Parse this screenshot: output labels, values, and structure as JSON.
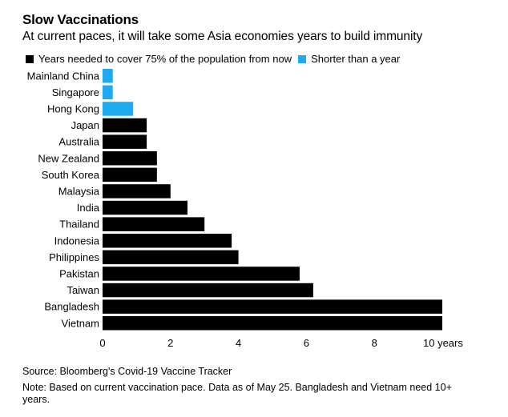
{
  "title": "Slow Vaccinations",
  "subtitle": "At current paces, it will take some Asia economies years to build immunity",
  "legend": [
    {
      "label": "Years needed to cover 75% of the population from now",
      "color": "#000000"
    },
    {
      "label": "Shorter than a year",
      "color": "#1eaaf1"
    }
  ],
  "chart_data": {
    "type": "bar",
    "orientation": "horizontal",
    "categories": [
      "Mainland China",
      "Singapore",
      "Hong Kong",
      "Japan",
      "Australia",
      "New Zealand",
      "South Korea",
      "Malaysia",
      "India",
      "Thailand",
      "Indonesia",
      "Philippines",
      "Pakistan",
      "Taiwan",
      "Bangladesh",
      "Vietnam"
    ],
    "values": [
      0.3,
      0.3,
      0.9,
      1.3,
      1.3,
      1.6,
      1.6,
      2.0,
      2.5,
      3.0,
      3.8,
      4.0,
      5.8,
      6.2,
      10,
      10
    ],
    "colors": [
      "#1eaaf1",
      "#1eaaf1",
      "#1eaaf1",
      "#000000",
      "#000000",
      "#000000",
      "#000000",
      "#000000",
      "#000000",
      "#000000",
      "#000000",
      "#000000",
      "#000000",
      "#000000",
      "#000000",
      "#000000"
    ],
    "xlim": [
      0,
      10
    ],
    "xticks": [
      0,
      2,
      4,
      6,
      8,
      10
    ],
    "xtick_labels": [
      "0",
      "2",
      "4",
      "6",
      "8",
      "10 years"
    ],
    "grid": false,
    "legend_position": "top-left"
  },
  "source": "Source: Bloomberg's Covid-19 Vaccine Tracker",
  "note": "Note: Based on current vaccination pace. Data as of May 25. Bangladesh and Vietnam need 10+ years."
}
